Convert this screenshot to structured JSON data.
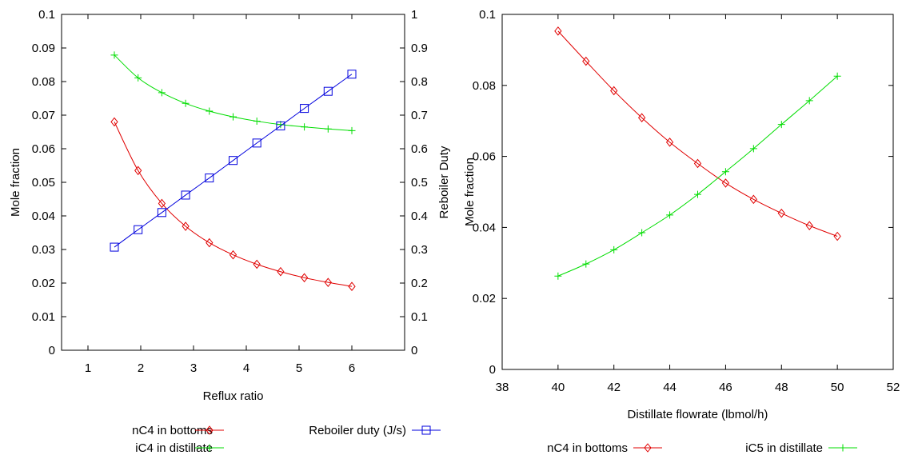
{
  "chart_data": [
    {
      "type": "line",
      "xlabel": "Reflux ratio",
      "ylabel": "Mole fraction",
      "y2label": "Reboiler Duty",
      "xlim": [
        0.5,
        7
      ],
      "ylim": [
        0,
        0.1
      ],
      "y2lim": [
        0,
        1
      ],
      "xticks": [
        "1",
        "2",
        "3",
        "4",
        "5",
        "6"
      ],
      "yticks": [
        "0",
        "0.01",
        "0.02",
        "0.03",
        "0.04",
        "0.05",
        "0.06",
        "0.07",
        "0.08",
        "0.09",
        "0.1"
      ],
      "y2ticks": [
        "0",
        "0.1",
        "0.2",
        "0.3",
        "0.4",
        "0.5",
        "0.6",
        "0.7",
        "0.8",
        "0.9",
        "1"
      ],
      "grid": false,
      "legend_position": "bottom",
      "x": [
        1.5,
        1.95,
        2.4,
        2.85,
        3.3,
        3.75,
        4.2,
        4.65,
        5.1,
        5.55,
        6.0
      ],
      "series": [
        {
          "name": "nC4 in bottoms",
          "axis": "left",
          "marker": "diamond",
          "color": "#e00000",
          "values": [
            0.068,
            0.0535,
            0.0437,
            0.0369,
            0.032,
            0.0284,
            0.0256,
            0.0234,
            0.0216,
            0.0202,
            0.019
          ]
        },
        {
          "name": "iC4 in distillate",
          "axis": "left",
          "marker": "plus",
          "color": "#00dd00",
          "values": [
            0.0879,
            0.0811,
            0.0767,
            0.0735,
            0.0712,
            0.0695,
            0.0682,
            0.0672,
            0.0665,
            0.0659,
            0.0654
          ]
        },
        {
          "name": "Reboiler duty (J/s)",
          "axis": "right",
          "marker": "square",
          "color": "#0000dd",
          "values": [
            0.307,
            0.359,
            0.41,
            0.462,
            0.513,
            0.565,
            0.617,
            0.668,
            0.72,
            0.771,
            0.822
          ]
        }
      ]
    },
    {
      "type": "line",
      "xlabel": "Distillate flowrate (lbmol/h)",
      "ylabel": "Mole fraction",
      "xlim": [
        38,
        52
      ],
      "ylim": [
        0,
        0.1
      ],
      "xticks": [
        "38",
        "40",
        "42",
        "44",
        "46",
        "48",
        "50",
        "52"
      ],
      "yticks": [
        "0",
        "0.02",
        "0.04",
        "0.06",
        "0.08",
        "0.1"
      ],
      "grid": false,
      "legend_position": "bottom",
      "x": [
        40,
        41,
        42,
        43,
        44,
        45,
        46,
        47,
        48,
        49,
        50
      ],
      "series": [
        {
          "name": "nC4 in bottoms",
          "axis": "left",
          "marker": "diamond",
          "color": "#e00000",
          "values": [
            0.0953,
            0.0868,
            0.0785,
            0.0709,
            0.064,
            0.058,
            0.0525,
            0.0479,
            0.044,
            0.0405,
            0.0375
          ]
        },
        {
          "name": "iC5 in distillate",
          "axis": "left",
          "marker": "plus",
          "color": "#00dd00",
          "values": [
            0.0263,
            0.0297,
            0.0337,
            0.0385,
            0.0435,
            0.0493,
            0.0557,
            0.0622,
            0.069,
            0.0757,
            0.0826
          ]
        }
      ]
    }
  ]
}
